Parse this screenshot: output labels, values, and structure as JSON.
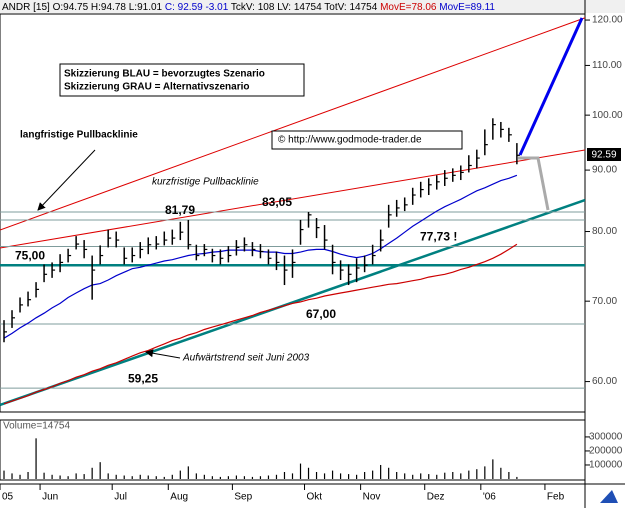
{
  "chart_data": {
    "type": "ohlc",
    "header": [
      "ANDR [15] O:94.75 H:94.78 L:91.01",
      "C: 92.59 -3.01",
      "TckV: 108 LV: 14754 TotV: 14754",
      "MovE=78.06",
      "MovE=89.11"
    ],
    "annotations": {
      "scenario_blue": "Skizzierung BLAU = bevorzugtes Szenario",
      "scenario_grey": "Skizzierung GRAU = Alternativszenario",
      "long_pullback": "langfristige Pullbacklinie",
      "short_pullback": "kurzfristige Pullbacklinie",
      "copyright": "© http://www.godmode-trader.de",
      "uptrend": "Aufwärtstrend seit Juni 2003"
    },
    "categories": [
      "05",
      null,
      null,
      null,
      null,
      "Jun",
      null,
      null,
      null,
      null,
      null,
      null,
      null,
      null,
      "Jul",
      null,
      null,
      null,
      null,
      null,
      null,
      "Aug",
      null,
      null,
      null,
      null,
      null,
      null,
      null,
      "Sep",
      null,
      null,
      null,
      null,
      null,
      null,
      null,
      null,
      "Okt",
      null,
      null,
      null,
      null,
      null,
      null,
      "Nov",
      null,
      null,
      null,
      null,
      null,
      null,
      null,
      "Dez",
      null,
      null,
      null,
      null,
      null,
      null,
      "'06",
      null,
      null,
      null,
      null,
      null,
      null,
      null,
      "Feb",
      null,
      null,
      null,
      null
    ],
    "high": [
      67.5,
      68.8,
      70.5,
      71.3,
      72.6,
      75.1,
      75.4,
      76.6,
      77.4,
      79.3,
      78.7,
      76.4,
      77.9,
      80.3,
      80.0,
      77.6,
      77.6,
      78.4,
      79.1,
      79.3,
      80.0,
      80.3,
      81.5,
      81.79,
      78.0,
      78.1,
      77.4,
      77.3,
      77.8,
      78.7,
      79.1,
      78.4,
      78.1,
      77.3,
      77.0,
      76.4,
      77.3,
      81.8,
      83.05,
      82.1,
      81.0,
      78.0,
      75.7,
      75.1,
      76.0,
      76.4,
      78.0,
      80.3,
      84.2,
      85.0,
      85.4,
      87.0,
      88.0,
      88.6,
      89.1,
      90.0,
      90.3,
      90.8,
      92.6,
      93.6,
      97.3,
      99.4,
      98.7,
      97.6,
      94.78,
      null,
      null,
      null,
      null,
      null,
      null,
      null,
      null
    ],
    "low": [
      64.7,
      66.5,
      68.5,
      69.3,
      70.5,
      72.6,
      73.2,
      74.0,
      75.4,
      77.3,
      76.0,
      70.2,
      75.1,
      77.6,
      77.6,
      75.1,
      75.4,
      76.0,
      76.6,
      77.3,
      77.9,
      78.0,
      78.7,
      77.3,
      75.7,
      76.3,
      75.4,
      75.1,
      75.4,
      76.4,
      77.0,
      76.3,
      76.0,
      75.1,
      74.3,
      72.2,
      73.2,
      78.0,
      80.6,
      79.0,
      77.3,
      73.7,
      72.9,
      72.2,
      72.6,
      74.0,
      75.1,
      77.0,
      80.6,
      82.3,
      83.2,
      84.2,
      85.4,
      85.8,
      86.7,
      87.3,
      88.0,
      88.3,
      89.6,
      90.3,
      92.6,
      95.4,
      95.8,
      95.0,
      91.01,
      null,
      null,
      null,
      null,
      null,
      null,
      null,
      null
    ],
    "close": [
      66.0,
      67.8,
      69.5,
      70.2,
      71.6,
      73.7,
      74.3,
      75.4,
      76.4,
      78.1,
      77.3,
      74.3,
      76.4,
      79.0,
      78.7,
      76.0,
      76.4,
      77.3,
      78.0,
      78.1,
      78.7,
      79.0,
      79.9,
      78.0,
      76.4,
      77.3,
      76.4,
      76.0,
      76.4,
      77.6,
      78.0,
      77.3,
      77.0,
      76.0,
      75.4,
      74.3,
      75.4,
      80.3,
      82.6,
      80.6,
      78.7,
      75.4,
      74.3,
      73.7,
      74.6,
      75.0,
      76.4,
      78.7,
      82.6,
      83.7,
      84.2,
      85.8,
      86.7,
      87.5,
      88.0,
      88.6,
      89.1,
      89.6,
      90.8,
      92.1,
      94.5,
      98.2,
      97.3,
      96.3,
      92.59,
      null,
      null,
      null,
      null,
      null,
      null,
      null,
      null
    ],
    "color": "#000000",
    "series": [
      {
        "color": "#cc0000",
        "values": [
          57.5,
          57.8,
          58.1,
          58.4,
          58.8,
          59.1,
          59.4,
          59.8,
          60.1,
          60.5,
          60.8,
          61.2,
          61.5,
          61.9,
          62.2,
          62.6,
          63.0,
          63.4,
          63.7,
          64.1,
          64.5,
          64.9,
          65.2,
          65.6,
          65.9,
          66.3,
          66.6,
          66.9,
          67.2,
          67.5,
          67.8,
          68.1,
          68.5,
          68.8,
          69.1,
          69.4,
          69.7,
          69.9,
          70.2,
          70.4,
          70.7,
          70.9,
          71.1,
          71.3,
          71.5,
          71.7,
          71.9,
          72.1,
          72.3,
          72.4,
          72.6,
          72.8,
          73.0,
          73.3,
          73.5,
          73.7,
          74.0,
          74.4,
          74.7,
          75.1,
          75.5,
          76.0,
          76.6,
          77.3,
          78.06,
          null,
          null,
          null,
          null,
          null,
          null,
          null,
          null
        ]
      },
      {
        "color": "#0000cc",
        "values": [
          65.2,
          65.8,
          66.5,
          67.1,
          67.8,
          68.4,
          69.1,
          69.7,
          70.5,
          71.1,
          71.7,
          72.2,
          72.4,
          72.9,
          73.5,
          74.0,
          74.5,
          74.7,
          75.0,
          75.3,
          75.6,
          75.8,
          76.1,
          76.4,
          76.6,
          76.7,
          76.9,
          77.0,
          77.2,
          77.2,
          77.2,
          77.2,
          77.0,
          76.9,
          76.9,
          76.7,
          76.7,
          76.9,
          77.2,
          77.3,
          77.3,
          77.0,
          76.6,
          76.3,
          76.1,
          76.3,
          76.7,
          77.4,
          78.2,
          79.0,
          79.9,
          80.8,
          81.6,
          82.4,
          83.2,
          83.9,
          84.5,
          85.1,
          85.8,
          86.5,
          87.0,
          87.6,
          88.2,
          88.6,
          89.11,
          null,
          null,
          null,
          null,
          null,
          null,
          null,
          null
        ]
      }
    ],
    "log": true,
    "ylim": [
      56.6,
      121.4
    ],
    "yticks": [
      {
        "value": 60,
        "label": "60.00"
      },
      {
        "value": 70,
        "label": "70.00"
      },
      {
        "value": 80,
        "label": "80.00"
      },
      {
        "value": 90,
        "label": "90.00"
      },
      {
        "value": 100,
        "label": "100.00"
      },
      {
        "value": 110,
        "label": "110.00"
      },
      {
        "value": 120,
        "label": "120.00"
      }
    ],
    "levels": [
      {
        "value": 59.25,
        "label": "59,25"
      },
      {
        "value": 67.0,
        "label": "67,00"
      },
      {
        "value": 75.0,
        "label": "75,00"
      },
      {
        "value": 77.73,
        "label": "77,73 !"
      },
      {
        "value": 81.79,
        "label": "81,79"
      },
      {
        "value": 83.05,
        "label": "83,05"
      }
    ],
    "volume": {
      "label": "Volume=14754",
      "values": [
        60000,
        40000,
        30000,
        50000,
        290000,
        45000,
        30000,
        25000,
        20000,
        40000,
        35000,
        80000,
        120000,
        40000,
        30000,
        25000,
        20000,
        30000,
        25000,
        20000,
        15000,
        30000,
        60000,
        90000,
        40000,
        30000,
        20000,
        15000,
        20000,
        25000,
        20000,
        15000,
        20000,
        25000,
        30000,
        50000,
        40000,
        110000,
        80000,
        50000,
        40000,
        60000,
        40000,
        35000,
        30000,
        50000,
        60000,
        100000,
        80000,
        50000,
        40000,
        30000,
        40000,
        35000,
        30000,
        45000,
        50000,
        40000,
        60000,
        70000,
        90000,
        140000,
        80000,
        50000,
        14754,
        null,
        null,
        null,
        null,
        null,
        null,
        null,
        null
      ],
      "ylim": [
        0,
        385000
      ],
      "yticks": [
        100000,
        200000,
        300000
      ]
    }
  }
}
